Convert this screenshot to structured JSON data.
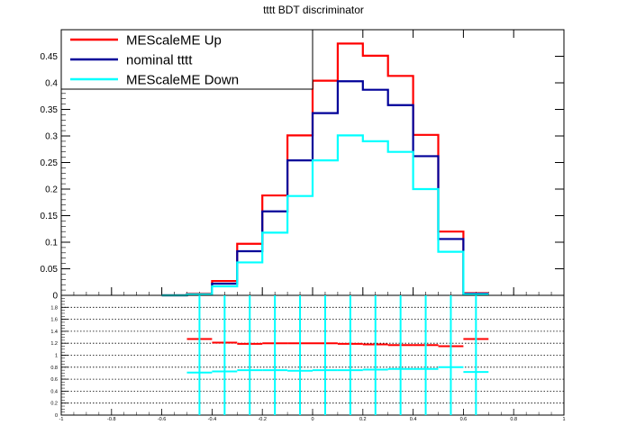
{
  "chart_data": [
    {
      "type": "line",
      "style": "step-histogram",
      "title": "tttt BDT discriminator",
      "xlabel": "",
      "ylabel": "",
      "xlim": [
        -1,
        1
      ],
      "ylim": [
        0,
        0.5
      ],
      "yticks": [
        0,
        0.05,
        0.1,
        0.15,
        0.2,
        0.25,
        0.3,
        0.35,
        0.4,
        0.45
      ],
      "ytick_labels": [
        "0",
        "0.05",
        "0.1",
        "0.15",
        "0.2",
        "0.25",
        "0.3",
        "0.35",
        "0.4",
        "0.45"
      ],
      "bin_edges": [
        -0.6,
        -0.5,
        -0.4,
        -0.3,
        -0.2,
        -0.1,
        0.0,
        0.1,
        0.2,
        0.3,
        0.4,
        0.5,
        0.6,
        0.7
      ],
      "grid": false,
      "legend_position": "top-left",
      "series": [
        {
          "name": "MEScaleME Up",
          "color": "#ff0000",
          "values": [
            0.0,
            0.003,
            0.027,
            0.097,
            0.188,
            0.301,
            0.404,
            0.474,
            0.451,
            0.413,
            0.302,
            0.12,
            0.004
          ]
        },
        {
          "name": "nominal tttt",
          "color": "#000099",
          "values": [
            0.0,
            0.002,
            0.022,
            0.083,
            0.158,
            0.254,
            0.343,
            0.403,
            0.387,
            0.358,
            0.262,
            0.106,
            0.003
          ]
        },
        {
          "name": "MEScaleME Down",
          "color": "#00ffff",
          "values": [
            0.0,
            0.002,
            0.017,
            0.062,
            0.118,
            0.187,
            0.254,
            0.301,
            0.29,
            0.27,
            0.2,
            0.082,
            0.002
          ]
        }
      ]
    },
    {
      "type": "scatter",
      "style": "ratio-panel",
      "title": "",
      "xlim": [
        -1,
        1
      ],
      "ylim": [
        0,
        2
      ],
      "xticks": [
        -1,
        -0.8,
        -0.6,
        -0.4,
        -0.2,
        0,
        0.2,
        0.4,
        0.6,
        0.8,
        1
      ],
      "xtick_labels": [
        "-1",
        "-0.8",
        "-0.6",
        "-0.4",
        "-0.2",
        "0",
        "0.2",
        "0.4",
        "0.6",
        "0.8",
        "1"
      ],
      "yticks": [
        0,
        0.2,
        0.4,
        0.6,
        0.8,
        1,
        1.2,
        1.4,
        1.6,
        1.8
      ],
      "ytick_labels": [
        "0",
        "0.2",
        "0.4",
        "0.6",
        "0.8",
        "1",
        "1.2",
        "1.4",
        "1.6",
        "1.8"
      ],
      "grid": true,
      "bin_centers": [
        -0.45,
        -0.35,
        -0.25,
        -0.15,
        -0.05,
        0.05,
        0.15,
        0.25,
        0.35,
        0.45,
        0.55,
        0.65
      ],
      "bin_halfwidth": 0.05,
      "series": [
        {
          "name": "",
          "color": "#ff0000",
          "values": [
            1.27,
            1.21,
            1.19,
            1.2,
            1.2,
            1.2,
            1.19,
            1.18,
            1.17,
            1.17,
            1.15,
            1.27
          ],
          "errors": [
            0.0,
            0.0,
            0.0,
            0.0,
            0.0,
            0.0,
            0.0,
            0.0,
            0.0,
            0.0,
            0.0,
            0.0
          ]
        },
        {
          "name": "",
          "color": "#00ffff",
          "values": [
            0.71,
            0.73,
            0.75,
            0.75,
            0.74,
            0.75,
            0.75,
            0.76,
            0.77,
            0.77,
            0.8,
            0.72
          ],
          "errors": [
            99,
            99,
            99,
            99,
            99,
            99,
            99,
            99,
            99,
            99,
            99,
            99
          ]
        }
      ]
    }
  ]
}
